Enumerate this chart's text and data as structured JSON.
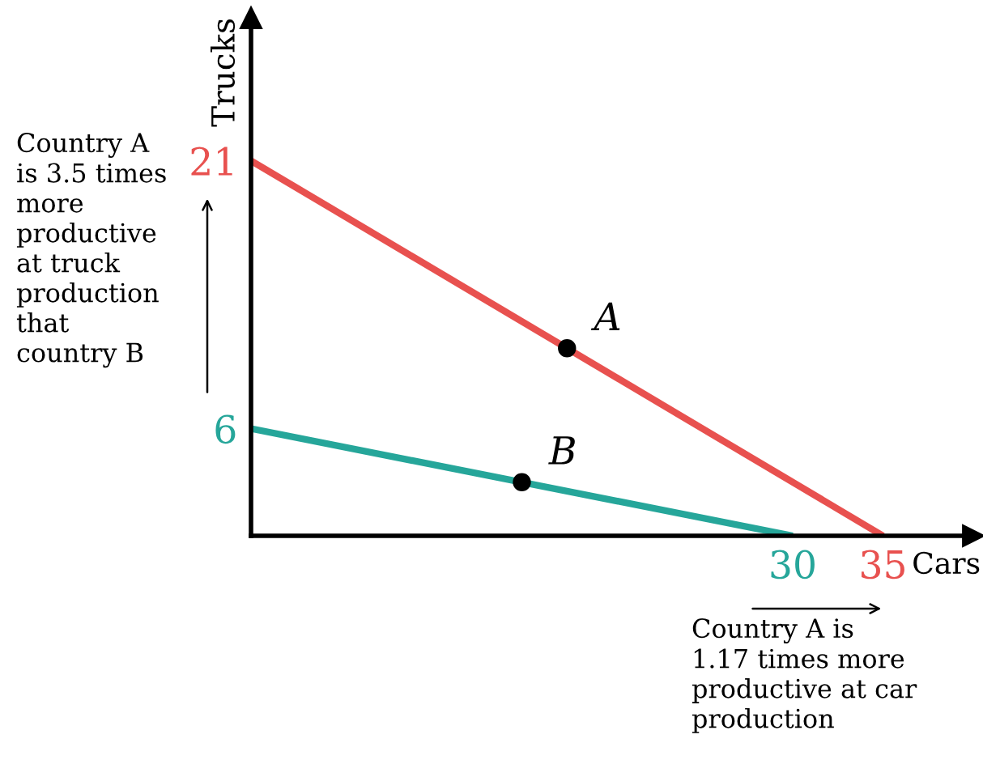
{
  "chart_data": {
    "type": "line",
    "xlabel": "Cars",
    "ylabel": "Trucks",
    "series": [
      {
        "color": "#e8514f",
        "x": [
          0,
          35
        ],
        "values": [
          21,
          0
        ]
      },
      {
        "color": "#26a69a",
        "x": [
          0,
          30
        ],
        "values": [
          6,
          0
        ]
      },
      {
        "type": "scatter",
        "name": "A",
        "color": "#000000",
        "x": [
          17.5
        ],
        "values": [
          10.5
        ]
      },
      {
        "type": "scatter",
        "name": "B",
        "color": "#000000",
        "x": [
          15
        ],
        "values": [
          3
        ]
      }
    ],
    "xlim": [
      0,
      40
    ],
    "ylim": [
      0,
      29
    ],
    "xticks": [
      30,
      35
    ],
    "yticks": [
      6,
      21
    ],
    "grid": false,
    "annotations": [
      "Country A\nis 3.5 times\nmore\nproductive\nat truck\nproduction\nthat\ncountry B",
      "Country A is\n1.17 times more\nproductive at car\nproduction"
    ]
  }
}
